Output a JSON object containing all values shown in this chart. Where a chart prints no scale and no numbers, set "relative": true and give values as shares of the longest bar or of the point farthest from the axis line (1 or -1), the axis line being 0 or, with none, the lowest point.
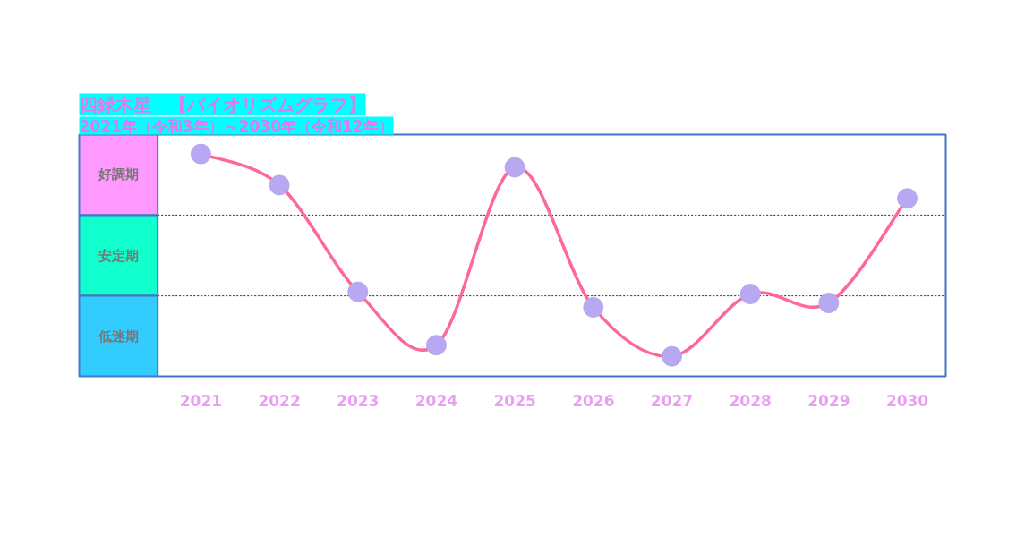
{
  "chart_data": {
    "type": "line",
    "title": "四緑木星　【バイオリズムグラフ】",
    "subtitle": "2021年（令和3年）～2030年（令和12年）",
    "x": [
      2021,
      2022,
      2023,
      2024,
      2025,
      2026,
      2027,
      2028,
      2029,
      2030
    ],
    "xlim": [
      2019.45,
      2030.49
    ],
    "xticks": [
      2021,
      2022,
      2023,
      2024,
      2025,
      2026,
      2027,
      2028,
      2029,
      2030
    ],
    "relative": true,
    "series": [
      {
        "color": "#ff6699",
        "values": [
          1,
          0.86,
          0.38,
          0.14,
          0.94,
          0.31,
          0.09,
          0.37,
          0.33,
          0.8
        ]
      }
    ],
    "marker": "circle",
    "tick_labels": "x",
    "bands": [
      {
        "axis": "y",
        "from": 0.725,
        "to": 1.087,
        "label": "好調期",
        "color": "#ff99ff"
      },
      {
        "axis": "y",
        "from": 0.362,
        "to": 0.725,
        "label": "安定期",
        "color": "#11ffcc"
      },
      {
        "axis": "y",
        "from": 0,
        "to": 0.362,
        "label": "低迷期",
        "color": "#33ccff"
      }
    ]
  }
}
